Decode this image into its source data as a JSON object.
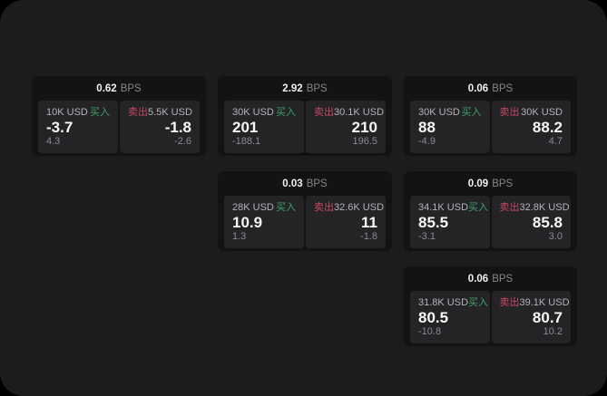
{
  "labels": {
    "buy": "买入",
    "sell": "卖出",
    "bps_unit": "BPS"
  },
  "colors": {
    "page_bg": "#1c1c1e",
    "card_bg": "#131314",
    "panel_bg": "#242427",
    "buy": "#3BA26A",
    "sell": "#C84764"
  },
  "cards": [
    {
      "bps": "0.62",
      "buy": {
        "notional": "10K USD",
        "price": "-3.7",
        "delta": "4.3"
      },
      "sell": {
        "notional": "5.5K USD",
        "price": "-1.8",
        "delta": "-2.6"
      }
    },
    {
      "bps": "2.92",
      "buy": {
        "notional": "30K USD",
        "price": "201",
        "delta": "-188.1"
      },
      "sell": {
        "notional": "30.1K USD",
        "price": "210",
        "delta": "196.5"
      }
    },
    {
      "bps": "0.06",
      "buy": {
        "notional": "30K USD",
        "price": "88",
        "delta": "-4.9"
      },
      "sell": {
        "notional": "30K USD",
        "price": "88.2",
        "delta": "4.7"
      }
    },
    {
      "bps": "0.03",
      "buy": {
        "notional": "28K USD",
        "price": "10.9",
        "delta": "1.3"
      },
      "sell": {
        "notional": "32.6K USD",
        "price": "11",
        "delta": "-1.8"
      }
    },
    {
      "bps": "0.09",
      "buy": {
        "notional": "34.1K USD",
        "price": "85.5",
        "delta": "-3.1"
      },
      "sell": {
        "notional": "32.8K USD",
        "price": "85.8",
        "delta": "3.0"
      }
    },
    {
      "bps": "0.06",
      "buy": {
        "notional": "31.8K USD",
        "price": "80.5",
        "delta": "-10.8"
      },
      "sell": {
        "notional": "39.1K USD",
        "price": "80.7",
        "delta": "10.2"
      }
    }
  ]
}
